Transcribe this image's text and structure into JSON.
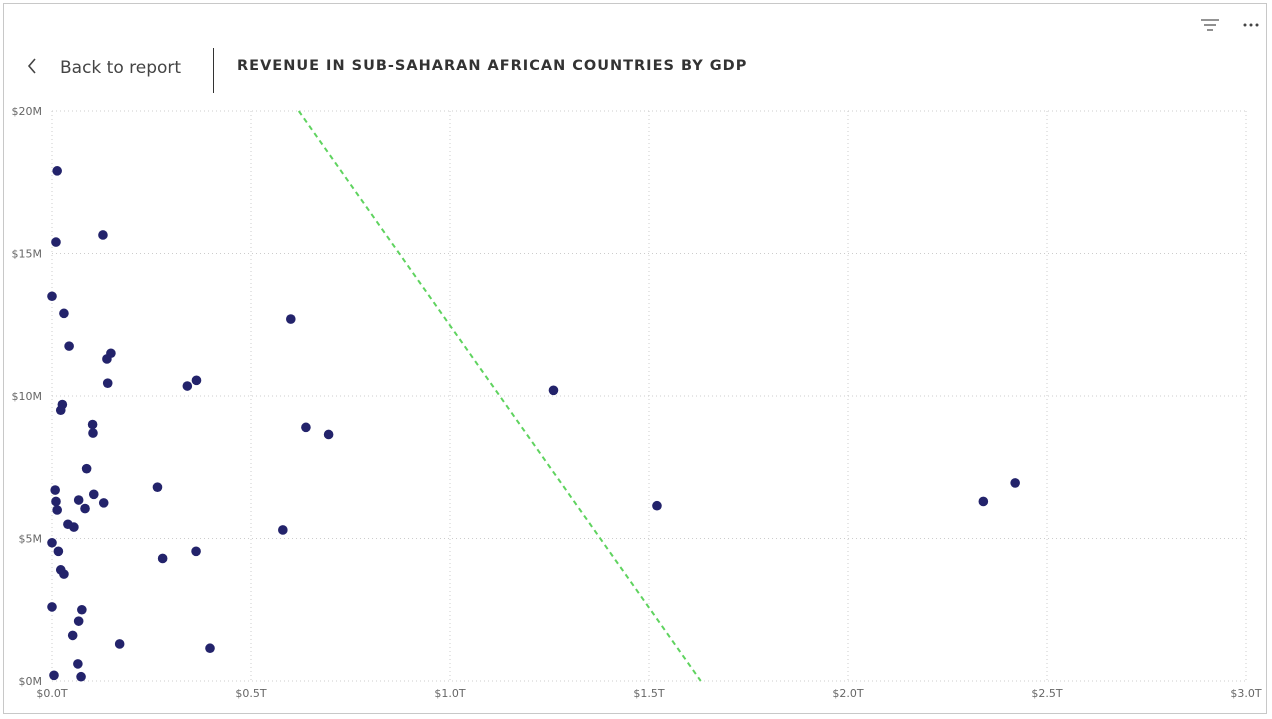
{
  "header": {
    "back_label": "Back to report",
    "title": "REVENUE IN SUB-SAHARAN AFRICAN COUNTRIES BY GDP"
  },
  "toolbar": {
    "filter_icon": "filter-icon",
    "more_icon": "more-options-icon"
  },
  "colors": {
    "point": "#23236b",
    "trend": "#5fd35f",
    "grid": "#cccccc"
  },
  "chart_data": {
    "type": "scatter",
    "title": "REVENUE IN SUB-SAHARAN AFRICAN COUNTRIES BY GDP",
    "xlabel": "",
    "ylabel": "",
    "xlim": [
      0,
      3.0
    ],
    "ylim": [
      0,
      20
    ],
    "x_unit": "T (GDP, $ trillions)",
    "y_unit": "M (Revenue, $ millions)",
    "x_ticks": [
      "$0.0T",
      "$0.5T",
      "$1.0T",
      "$1.5T",
      "$2.0T",
      "$2.5T",
      "$3.0T"
    ],
    "y_ticks": [
      "$0M",
      "$5M",
      "$10M",
      "$15M",
      "$20M"
    ],
    "grid": true,
    "series": [
      {
        "points": [
          [
            0.013,
            17.9
          ],
          [
            0.01,
            15.4
          ],
          [
            0.128,
            15.65
          ],
          [
            0.0,
            13.5
          ],
          [
            0.03,
            12.9
          ],
          [
            0.6,
            12.7
          ],
          [
            0.043,
            11.75
          ],
          [
            0.148,
            11.5
          ],
          [
            0.138,
            11.3
          ],
          [
            0.363,
            10.55
          ],
          [
            0.34,
            10.35
          ],
          [
            0.14,
            10.45
          ],
          [
            1.26,
            10.2
          ],
          [
            0.026,
            9.7
          ],
          [
            0.022,
            9.5
          ],
          [
            0.102,
            9.0
          ],
          [
            0.638,
            8.9
          ],
          [
            0.103,
            8.7
          ],
          [
            0.695,
            8.65
          ],
          [
            0.087,
            7.45
          ],
          [
            2.42,
            6.95
          ],
          [
            0.265,
            6.8
          ],
          [
            0.008,
            6.7
          ],
          [
            0.105,
            6.55
          ],
          [
            0.067,
            6.35
          ],
          [
            0.01,
            6.3
          ],
          [
            2.34,
            6.3
          ],
          [
            0.13,
            6.25
          ],
          [
            1.52,
            6.15
          ],
          [
            0.083,
            6.05
          ],
          [
            0.013,
            6.0
          ],
          [
            0.04,
            5.5
          ],
          [
            0.055,
            5.4
          ],
          [
            0.58,
            5.3
          ],
          [
            0.0,
            4.85
          ],
          [
            0.016,
            4.55
          ],
          [
            0.362,
            4.55
          ],
          [
            0.278,
            4.3
          ],
          [
            0.022,
            3.9
          ],
          [
            0.03,
            3.75
          ],
          [
            0.0,
            2.6
          ],
          [
            0.075,
            2.5
          ],
          [
            0.067,
            2.1
          ],
          [
            0.052,
            1.6
          ],
          [
            0.17,
            1.3
          ],
          [
            0.397,
            1.15
          ],
          [
            0.065,
            0.6
          ],
          [
            0.005,
            0.2
          ],
          [
            0.073,
            0.15
          ]
        ]
      }
    ],
    "trend_line": [
      [
        0.62,
        20
      ],
      [
        1.63,
        0
      ]
    ]
  }
}
